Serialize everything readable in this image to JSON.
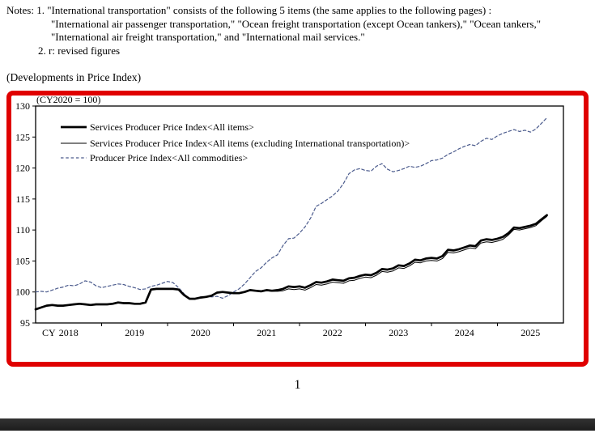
{
  "notes": {
    "line1": "Notes: 1. \"International transportation\" consists of the following 5 items (the same applies to the following pages) :",
    "line2": "\"International air passenger transportation,\" \"Ocean freight transportation (except Ocean tankers),\" \"Ocean tankers,\"",
    "line3": "\"International air freight transportation,\" and \"International mail services.\"",
    "line4": "2. r: revised figures"
  },
  "section_title": "(Developments in Price Index)",
  "page_number": "1",
  "colors": {
    "frame_highlight": "#e00000",
    "sppi_line": "#000000",
    "ppi_line": "#4a5a8c",
    "footer_bar": "#262626"
  },
  "chart_data": {
    "type": "line",
    "title": "",
    "unit_note": "(CY2020 = 100)",
    "x_axis_prefix": "CY",
    "x_tick_years": [
      2018,
      2019,
      2020,
      2021,
      2022,
      2023,
      2024,
      2025
    ],
    "x_start_month": "2018-01",
    "x_end_month": "2025-10",
    "months_per_axis": 96,
    "ylim": [
      95,
      130
    ],
    "y_ticks": [
      95,
      100,
      105,
      110,
      115,
      120,
      125,
      130
    ],
    "grid": false,
    "legend_position": "top-left-inside",
    "series": [
      {
        "name": "Services Producer Price Index<All items>",
        "style": "solid-thick",
        "color": "#000000",
        "values": [
          97.2,
          97.5,
          97.8,
          97.9,
          97.8,
          97.8,
          97.9,
          98.0,
          98.1,
          98.0,
          97.9,
          98.0,
          98.0,
          98.0,
          98.1,
          98.3,
          98.2,
          98.2,
          98.1,
          98.1,
          98.3,
          100.4,
          100.5,
          100.5,
          100.5,
          100.5,
          100.4,
          99.5,
          98.9,
          98.9,
          99.1,
          99.2,
          99.4,
          99.9,
          100.0,
          99.9,
          99.8,
          99.8,
          100.0,
          100.3,
          100.2,
          100.1,
          100.3,
          100.2,
          100.3,
          100.5,
          100.9,
          100.8,
          100.9,
          100.7,
          101.1,
          101.6,
          101.5,
          101.7,
          102.0,
          101.9,
          101.8,
          102.2,
          102.3,
          102.6,
          102.8,
          102.7,
          103.1,
          103.7,
          103.6,
          103.8,
          104.3,
          104.2,
          104.6,
          105.2,
          105.1,
          105.4,
          105.5,
          105.4,
          105.8,
          106.8,
          106.7,
          106.9,
          107.2,
          107.5,
          107.4,
          108.3,
          108.5,
          108.4,
          108.6,
          108.9,
          109.5,
          110.4,
          110.3,
          110.5,
          110.7,
          111.0,
          111.7,
          112.4
        ]
      },
      {
        "name": "Services Producer Price Index<All items (excluding International transportation)>",
        "style": "solid-thin",
        "color": "#000000",
        "values": [
          97.2,
          97.5,
          97.8,
          97.9,
          97.8,
          97.8,
          97.9,
          98.0,
          98.1,
          98.0,
          97.9,
          98.0,
          98.0,
          98.0,
          98.1,
          98.3,
          98.2,
          98.2,
          98.1,
          98.1,
          98.3,
          100.4,
          100.5,
          100.5,
          100.5,
          100.5,
          100.4,
          99.5,
          98.9,
          98.9,
          99.1,
          99.2,
          99.4,
          99.9,
          100.0,
          99.9,
          99.8,
          99.8,
          100.0,
          100.3,
          100.2,
          100.1,
          100.2,
          100.1,
          100.1,
          100.2,
          100.5,
          100.4,
          100.5,
          100.3,
          100.7,
          101.2,
          101.1,
          101.3,
          101.6,
          101.5,
          101.4,
          101.8,
          101.9,
          102.2,
          102.4,
          102.3,
          102.7,
          103.3,
          103.2,
          103.4,
          103.9,
          103.8,
          104.2,
          104.8,
          104.7,
          105.0,
          105.1,
          105.0,
          105.4,
          106.4,
          106.3,
          106.5,
          106.8,
          107.1,
          107.0,
          107.9,
          108.1,
          108.0,
          108.2,
          108.5,
          109.2,
          110.1,
          110.0,
          110.2,
          110.4,
          110.7,
          111.5,
          112.2
        ]
      },
      {
        "name": "Producer Price Index<All commodities>",
        "style": "dashed",
        "color": "#4a5a8c",
        "values": [
          100.0,
          100.1,
          100.0,
          100.3,
          100.6,
          100.8,
          101.1,
          101.0,
          101.3,
          101.8,
          101.6,
          101.0,
          100.7,
          100.9,
          101.1,
          101.3,
          101.2,
          100.9,
          100.7,
          100.4,
          100.5,
          100.9,
          101.1,
          101.4,
          101.7,
          101.5,
          100.7,
          99.7,
          98.8,
          98.9,
          99.2,
          99.3,
          99.2,
          99.3,
          99.0,
          99.4,
          100.0,
          100.5,
          101.3,
          102.3,
          103.3,
          103.9,
          104.8,
          105.5,
          106.0,
          107.5,
          108.6,
          108.7,
          109.5,
          110.5,
          111.9,
          113.8,
          114.3,
          114.9,
          115.5,
          116.3,
          117.5,
          119.1,
          119.7,
          119.9,
          119.6,
          119.5,
          120.3,
          120.7,
          119.8,
          119.4,
          119.6,
          119.9,
          120.3,
          120.1,
          120.3,
          120.7,
          121.2,
          121.3,
          121.6,
          122.2,
          122.6,
          123.1,
          123.5,
          123.8,
          123.6,
          124.3,
          124.8,
          124.6,
          125.2,
          125.6,
          125.9,
          126.2,
          125.9,
          126.1,
          125.8,
          126.3,
          127.2,
          128.1
        ]
      }
    ]
  }
}
